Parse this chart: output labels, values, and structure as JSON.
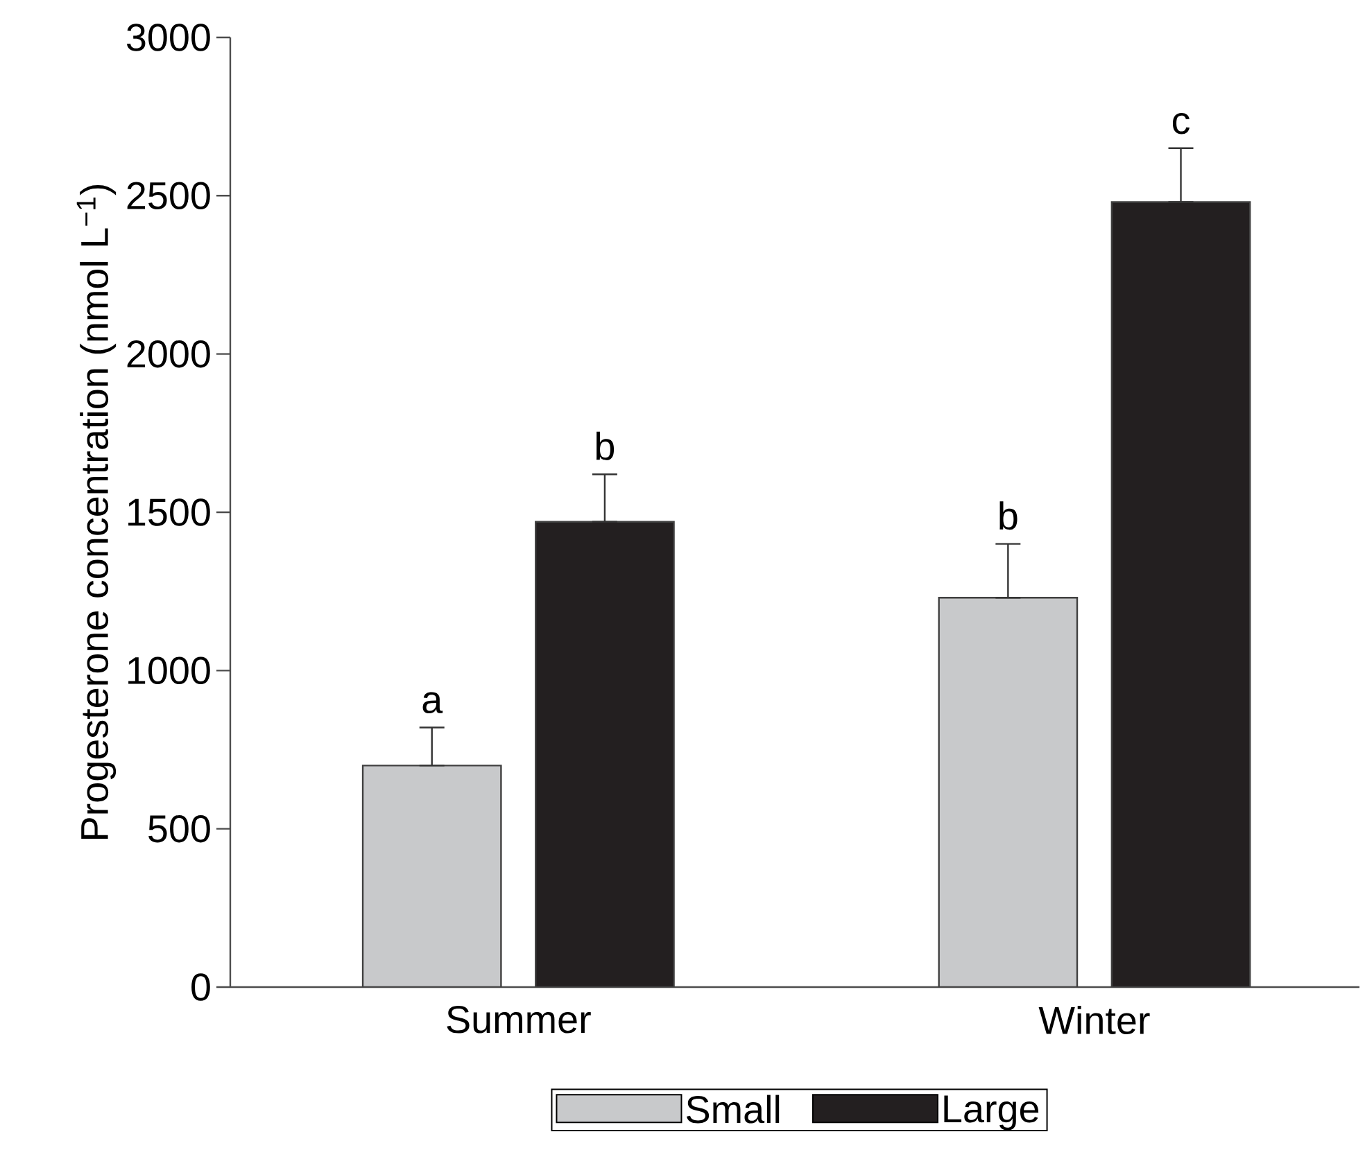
{
  "chart_data": {
    "type": "bar",
    "ylabel": "Progesterone concentration (nmol L$^{−1}$)",
    "categories": [
      "Summer",
      "Winter"
    ],
    "series": [
      {
        "name": "Small",
        "color": "#c8c9cb",
        "values": [
          700,
          1230
        ],
        "errors": [
          [
            700,
            820
          ],
          [
            1230,
            1400
          ]
        ]
      },
      {
        "name": "Large",
        "color": "#231f20",
        "values": [
          1470,
          2480
        ],
        "errors": [
          [
            1470,
            1620
          ],
          [
            2480,
            2650
          ]
        ]
      }
    ],
    "ylim": [
      0,
      3000
    ],
    "yticks": [
      0,
      500,
      1000,
      1500,
      2000,
      2500,
      3000
    ],
    "legend": "bottom",
    "annotations": [
      "a",
      "b",
      "b",
      "c"
    ]
  }
}
